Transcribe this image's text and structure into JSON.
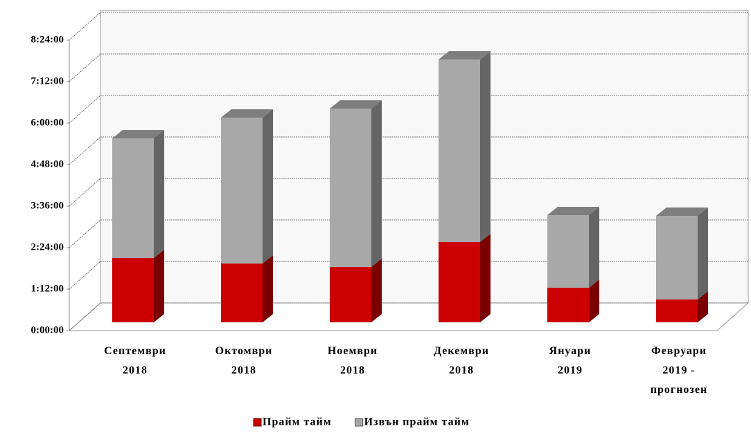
{
  "chart_data": {
    "type": "stacked-bar-3d",
    "categories": [
      "Септември\n2018",
      "Октомври\n2018",
      "Ноември\n2018",
      "Декември\n2018",
      "Януари\n2019",
      "Февруари\n2019 -\nпрогнозен"
    ],
    "series": [
      {
        "name": "Прайм тайм",
        "color": "#cc0000",
        "values": [
          1.86,
          1.7,
          1.6,
          2.32,
          1.0,
          0.66
        ]
      },
      {
        "name": "Извън прайм тайм",
        "color": "#a8a8a8",
        "values": [
          3.46,
          4.22,
          4.58,
          5.28,
          2.1,
          2.42
        ]
      }
    ],
    "ylim": [
      0,
      8.4
    ],
    "yticks": [
      {
        "value": 0,
        "label": "0:00:00"
      },
      {
        "value": 1.2,
        "label": "1:12:00"
      },
      {
        "value": 2.4,
        "label": "2:24:00"
      },
      {
        "value": 3.6,
        "label": "3:36:00"
      },
      {
        "value": 4.8,
        "label": "4:48:00"
      },
      {
        "value": 6.0,
        "label": "6:00:00"
      },
      {
        "value": 7.2,
        "label": "7:12:00"
      },
      {
        "value": 8.4,
        "label": "8:24:00"
      }
    ],
    "grid": true,
    "legend": "bottom"
  }
}
